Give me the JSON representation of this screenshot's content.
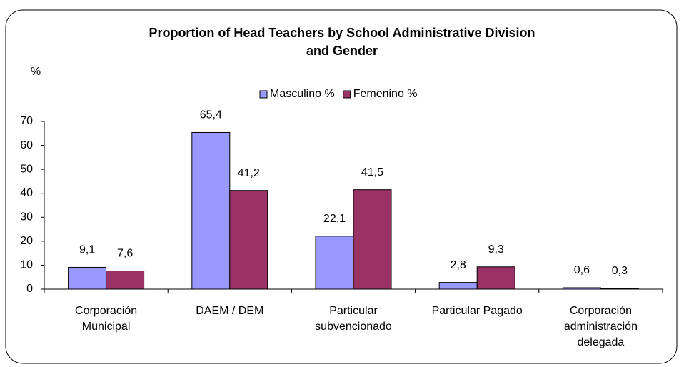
{
  "chart_data": {
    "type": "bar",
    "title": "Proportion of Head Teachers by School Administrative Division\nand Gender",
    "ylabel": "%",
    "categories": [
      "Corporación\nMunicipal",
      "DAEM / DEM",
      "Particular\nsubvencionado",
      "Particular Pagado",
      "Corporación\nadministración\ndelegada"
    ],
    "series": [
      {
        "name": "Masculino %",
        "color": "#9999ff",
        "values": [
          9.1,
          65.4,
          22.1,
          2.8,
          0.6
        ],
        "value_labels": [
          "9,1",
          "65,4",
          "22,1",
          "2,8",
          "0,6"
        ]
      },
      {
        "name": "Femenino %",
        "color": "#993366",
        "values": [
          7.6,
          41.2,
          41.5,
          9.3,
          0.3
        ],
        "value_labels": [
          "7,6",
          "41,2",
          "41,5",
          "9,3",
          "0,3"
        ]
      }
    ],
    "ylim": [
      0,
      70
    ],
    "yticks": [
      0,
      10,
      20,
      30,
      40,
      50,
      60,
      70
    ],
    "grid": false,
    "legend": "top"
  }
}
